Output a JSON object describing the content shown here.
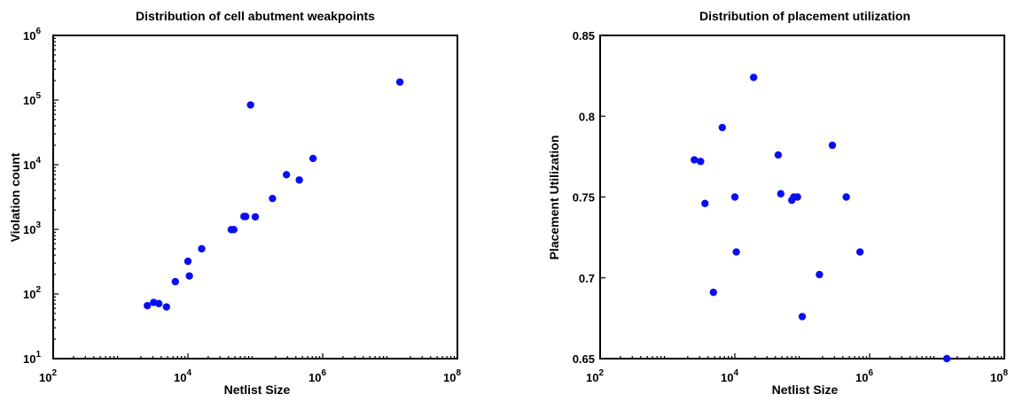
{
  "chart_data": [
    {
      "type": "scatter",
      "title": "Distribution of cell abutment weakpoints",
      "xlabel": "Netlist Size",
      "ylabel": "Violation count",
      "x_scale": "log",
      "y_scale": "log",
      "xlim": [
        100,
        100000000
      ],
      "ylim": [
        10,
        1000000
      ],
      "x_ticks": [
        {
          "base": "10",
          "exp": "2",
          "value": 100
        },
        {
          "base": "10",
          "exp": "4",
          "value": 10000
        },
        {
          "base": "10",
          "exp": "6",
          "value": 1000000
        },
        {
          "base": "10",
          "exp": "8",
          "value": 100000000
        }
      ],
      "y_ticks": [
        {
          "base": "10",
          "exp": "1",
          "value": 10
        },
        {
          "base": "10",
          "exp": "2",
          "value": 100
        },
        {
          "base": "10",
          "exp": "3",
          "value": 1000
        },
        {
          "base": "10",
          "exp": "4",
          "value": 10000
        },
        {
          "base": "10",
          "exp": "5",
          "value": 100000
        },
        {
          "base": "10",
          "exp": "6",
          "value": 1000000
        }
      ],
      "marker_color": "#0a0ff0",
      "points": [
        {
          "x": 2500,
          "y": 66
        },
        {
          "x": 3100,
          "y": 74
        },
        {
          "x": 3700,
          "y": 71
        },
        {
          "x": 4800,
          "y": 63
        },
        {
          "x": 6500,
          "y": 155
        },
        {
          "x": 10000,
          "y": 320
        },
        {
          "x": 10500,
          "y": 190
        },
        {
          "x": 16000,
          "y": 500
        },
        {
          "x": 44000,
          "y": 990
        },
        {
          "x": 48000,
          "y": 990
        },
        {
          "x": 68000,
          "y": 1580
        },
        {
          "x": 72000,
          "y": 1580
        },
        {
          "x": 85000,
          "y": 84000
        },
        {
          "x": 100000,
          "y": 1560
        },
        {
          "x": 180000,
          "y": 3000
        },
        {
          "x": 290000,
          "y": 7000
        },
        {
          "x": 450000,
          "y": 5800
        },
        {
          "x": 720000,
          "y": 12500
        },
        {
          "x": 14000000,
          "y": 190000
        }
      ]
    },
    {
      "type": "scatter",
      "title": "Distribution of placement utilization",
      "xlabel": "Netlist Size",
      "ylabel": "Placement Utilization",
      "x_scale": "log",
      "xlim": [
        100,
        100000000
      ],
      "ylim": [
        0.65,
        0.85
      ],
      "x_ticks": [
        {
          "base": "10",
          "exp": "2",
          "value": 100
        },
        {
          "base": "10",
          "exp": "4",
          "value": 10000
        },
        {
          "base": "10",
          "exp": "6",
          "value": 1000000
        },
        {
          "base": "10",
          "exp": "8",
          "value": 100000000
        }
      ],
      "y_ticks": [
        {
          "label": "0.65",
          "value": 0.65
        },
        {
          "label": "0.7",
          "value": 0.7
        },
        {
          "label": "0.75",
          "value": 0.75
        },
        {
          "label": "0.8",
          "value": 0.8
        },
        {
          "label": "0.85",
          "value": 0.85
        }
      ],
      "marker_color": "#0a0ff0",
      "points": [
        {
          "x": 2500,
          "y": 0.773
        },
        {
          "x": 3100,
          "y": 0.772
        },
        {
          "x": 3600,
          "y": 0.746
        },
        {
          "x": 4800,
          "y": 0.691
        },
        {
          "x": 6500,
          "y": 0.793
        },
        {
          "x": 10000,
          "y": 0.75
        },
        {
          "x": 10500,
          "y": 0.716
        },
        {
          "x": 19000,
          "y": 0.824
        },
        {
          "x": 44000,
          "y": 0.776
        },
        {
          "x": 48000,
          "y": 0.752
        },
        {
          "x": 70000,
          "y": 0.748
        },
        {
          "x": 75000,
          "y": 0.75
        },
        {
          "x": 85000,
          "y": 0.75
        },
        {
          "x": 100000,
          "y": 0.676
        },
        {
          "x": 180000,
          "y": 0.702
        },
        {
          "x": 280000,
          "y": 0.782
        },
        {
          "x": 450000,
          "y": 0.75
        },
        {
          "x": 720000,
          "y": 0.716
        },
        {
          "x": 14000000,
          "y": 0.65
        }
      ]
    }
  ]
}
